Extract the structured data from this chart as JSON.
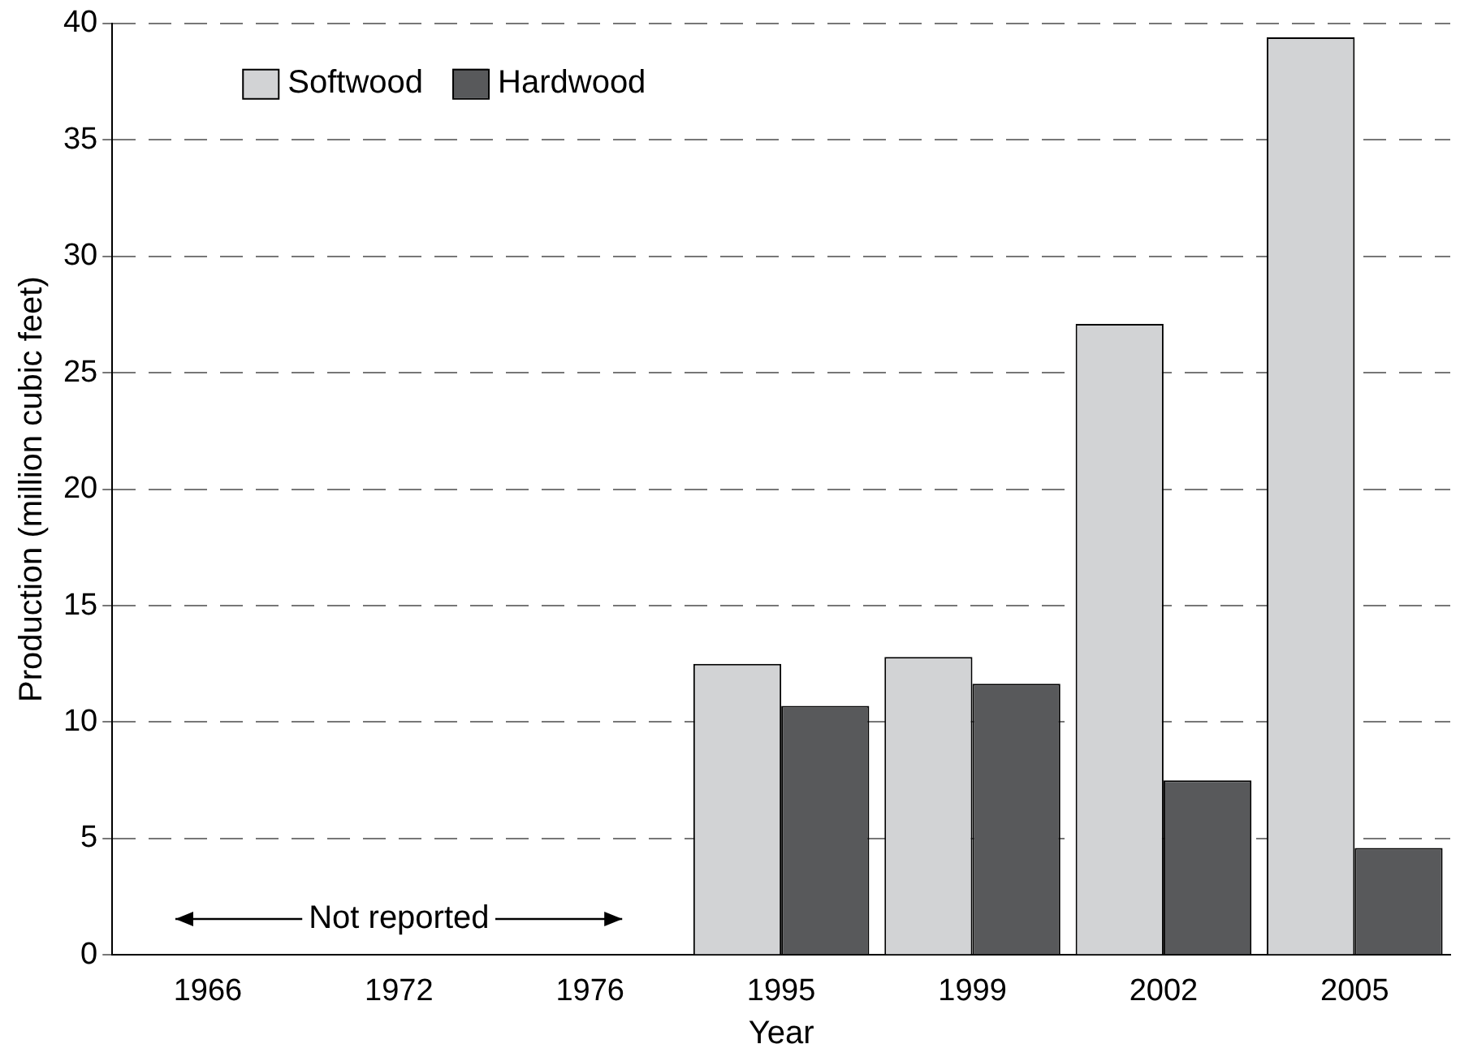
{
  "chart_data": {
    "type": "bar",
    "xlabel": "Year",
    "ylabel": "Production (million cubic feet)",
    "categories": [
      "1966",
      "1972",
      "1976",
      "1995",
      "1999",
      "2002",
      "2005"
    ],
    "series": [
      {
        "name": "Softwood",
        "color": "#d2d3d5",
        "values": [
          null,
          null,
          null,
          12.5,
          12.8,
          27.1,
          39.4
        ]
      },
      {
        "name": "Hardwood",
        "color": "#58595b",
        "values": [
          null,
          null,
          null,
          10.7,
          11.65,
          7.5,
          4.6
        ]
      }
    ],
    "ylim": [
      0,
      40
    ],
    "yticks": [
      0,
      5,
      10,
      15,
      20,
      25,
      30,
      35,
      40
    ],
    "grid": "y",
    "legend": "top left",
    "annotations": [
      "Not reported"
    ]
  }
}
